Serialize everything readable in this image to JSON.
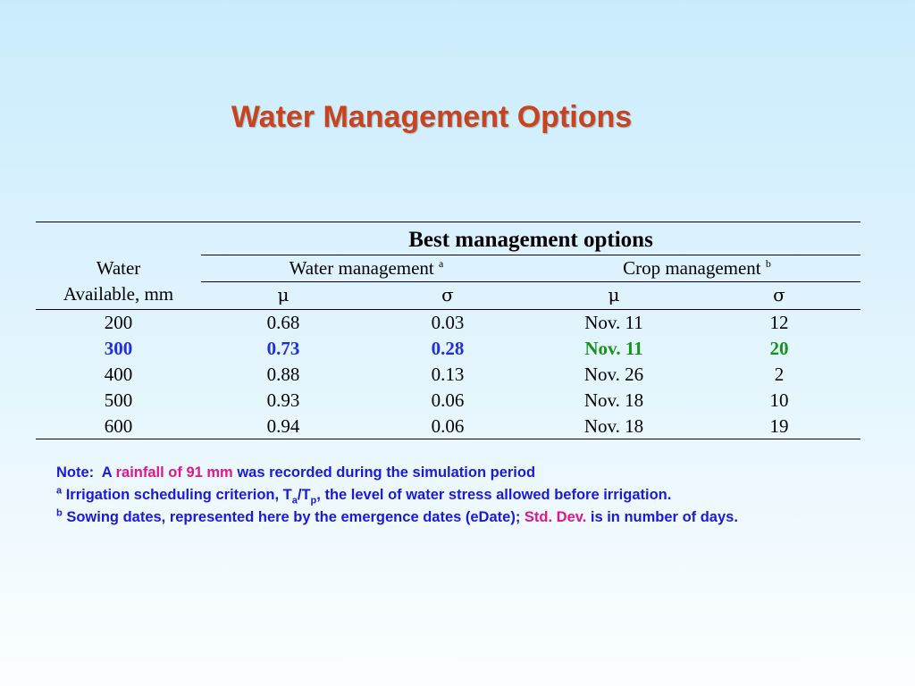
{
  "title": "Water Management Options",
  "table": {
    "best_header": "Best management options",
    "water_available_line1": "Water",
    "water_available_line2": "Available, mm",
    "water_management": "Water management",
    "water_management_sup": "a",
    "crop_management": "Crop management",
    "crop_management_sup": "b",
    "mu": "μ",
    "sigma": "σ",
    "rows": [
      {
        "water": "200",
        "wm_mu": "0.68",
        "wm_sigma": "0.03",
        "cm_mu": "Nov. 11",
        "cm_sigma": "12"
      },
      {
        "water": "300",
        "wm_mu": "0.73",
        "wm_sigma": "0.28",
        "cm_mu": "Nov. 11",
        "cm_sigma": "20"
      },
      {
        "water": "400",
        "wm_mu": "0.88",
        "wm_sigma": "0.13",
        "cm_mu": "Nov. 26",
        "cm_sigma": "2"
      },
      {
        "water": "500",
        "wm_mu": "0.93",
        "wm_sigma": "0.06",
        "cm_mu": "Nov. 18",
        "cm_sigma": "10"
      },
      {
        "water": "600",
        "wm_mu": "0.94",
        "wm_sigma": "0.06",
        "cm_mu": "Nov. 18",
        "cm_sigma": "19"
      }
    ]
  },
  "notes": {
    "note_prefix": "Note:  A ",
    "note_highlight": "rainfall of 91 mm",
    "note_suffix": " was recorded during the simulation period",
    "a_marker": "a",
    "a_text_start": " Irrigation scheduling criterion, T",
    "a_sub1": "a",
    "a_slash": "/T",
    "a_sub2": "p",
    "a_text_end": ", the level of water stress allowed before irrigation.",
    "b_marker": "b",
    "b_text_start": " Sowing dates, represented here by the emergence dates (eDate); ",
    "b_highlight": "Std. Dev.",
    "b_text_end": " is in number of days."
  },
  "colors": {
    "title": "#c8441e",
    "highlight_blue": "#1f2ee0",
    "highlight_green": "#17921a",
    "notes_text": "#1a1ad8",
    "notes_highlight": "#e0158f"
  }
}
